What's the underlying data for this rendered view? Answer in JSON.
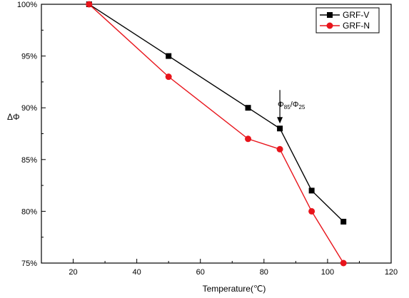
{
  "chart_data": {
    "type": "line",
    "xlabel": "Temperature(℃)",
    "ylabel": "ΔΦ",
    "xlim": [
      10,
      120
    ],
    "ylim": [
      75,
      100
    ],
    "xticks": [
      20,
      40,
      60,
      80,
      100,
      120
    ],
    "yticks": [
      75,
      80,
      85,
      90,
      95,
      100
    ],
    "y_tick_suffix": "%",
    "grid": false,
    "legend_position": "top-right",
    "series": [
      {
        "name": "GRF-V",
        "color": "#000000",
        "marker": "square",
        "x": [
          25,
          50,
          75,
          85,
          95,
          105
        ],
        "y": [
          100,
          95,
          90,
          88,
          82,
          79
        ]
      },
      {
        "name": "GRF-N",
        "color": "#e8141b",
        "marker": "circle",
        "x": [
          25,
          50,
          75,
          85,
          95,
          105
        ],
        "y": [
          100,
          93,
          87,
          86,
          80,
          75
        ]
      }
    ],
    "annotation": {
      "phi": "Φ",
      "num_sub": "85",
      "slash": "/",
      "den_sub": "25",
      "x": 85,
      "y": 88
    }
  }
}
